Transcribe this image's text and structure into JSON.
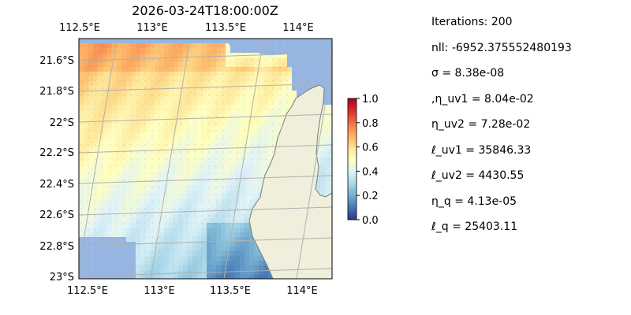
{
  "title": "2026-03-24T18:00:00Z",
  "map": {
    "lon_ticks_top": [
      "112.5°E",
      "113°E",
      "113.5°E",
      "114°E"
    ],
    "lon_ticks_bottom": [
      "112.5°E",
      "113°E",
      "113.5°E",
      "114°E"
    ],
    "lat_ticks": [
      "21.6°S",
      "21.8°S",
      "22°S",
      "22.2°S",
      "22.4°S",
      "22.6°S",
      "22.8°S",
      "23°S"
    ],
    "extent": {
      "lon_min": 112.5,
      "lon_max": 114.25,
      "lat_min": -23.0,
      "lat_max": -21.5
    },
    "colors": {
      "ocean": "#97b6e1",
      "land": "#efefdb",
      "coast": "#7a7a7a",
      "grid": "#b0b0b0"
    }
  },
  "colorbar": {
    "ticks": [
      "0.0",
      "0.2",
      "0.4",
      "0.6",
      "0.8",
      "1.0"
    ],
    "range": [
      0.0,
      1.0
    ],
    "colormap": "RdYlBu_r"
  },
  "params": [
    "Iterations: 200",
    "nll: -6952.375552480193",
    "σ = 8.38e-08",
    ",η_uv1 = 8.04e-02",
    "η_uv2 = 7.28e-02",
    "ℓ_uv1 = 35846.33",
    "ℓ_uv2 = 4430.55",
    "η_q = 4.13e-05",
    "ℓ_q = 25403.11"
  ]
}
